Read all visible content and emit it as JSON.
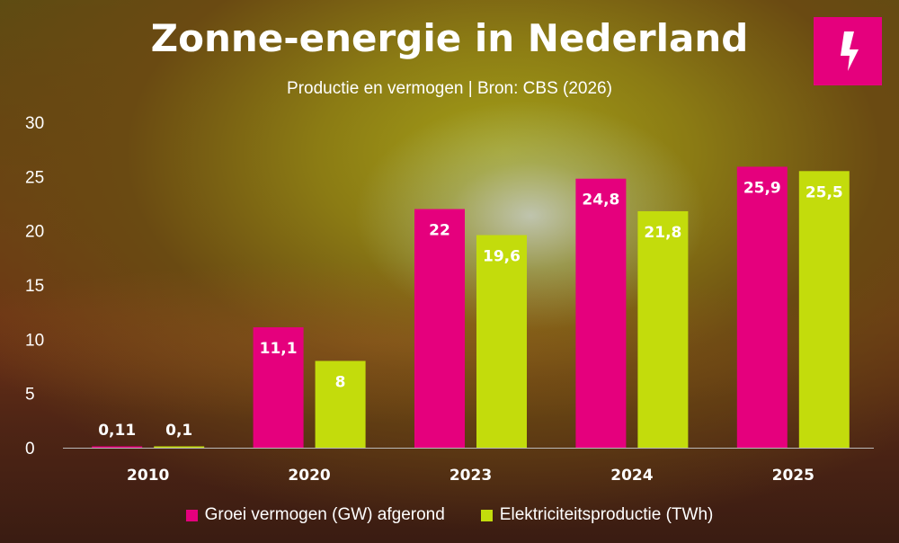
{
  "header": {
    "title": "Zonne-energie in Nederland",
    "subtitle": "Productie en vermogen | Bron: CBS (2026)",
    "logo_icon": "lightning-bolt-icon"
  },
  "colors": {
    "series_1": "#e5007d",
    "series_2": "#c3dc0c",
    "logo": "#e5007d"
  },
  "chart_data": {
    "type": "bar",
    "title": "Zonne-energie in Nederland",
    "subtitle": "Productie en vermogen | Bron: CBS (2026)",
    "categories": [
      "2010",
      "2020",
      "2023",
      "2024",
      "2025"
    ],
    "series": [
      {
        "name": "Groei vermogen (GW) afgerond",
        "values": [
          0.11,
          11.1,
          22,
          24.8,
          25.9
        ],
        "labels": [
          "0,11",
          "11,1",
          "22",
          "24,8",
          "25,9"
        ]
      },
      {
        "name": "Elektriciteitsproductie (TWh)",
        "values": [
          0.1,
          8,
          19.6,
          21.8,
          25.5
        ],
        "labels": [
          "0,1",
          "8",
          "19,6",
          "21,8",
          "25,5"
        ]
      }
    ],
    "yticks": [
      "0",
      "5",
      "10",
      "15",
      "20",
      "25",
      "30"
    ],
    "ylim": [
      0,
      30
    ],
    "xlabel": "",
    "ylabel": "",
    "grid": false,
    "legend_position": "bottom"
  }
}
